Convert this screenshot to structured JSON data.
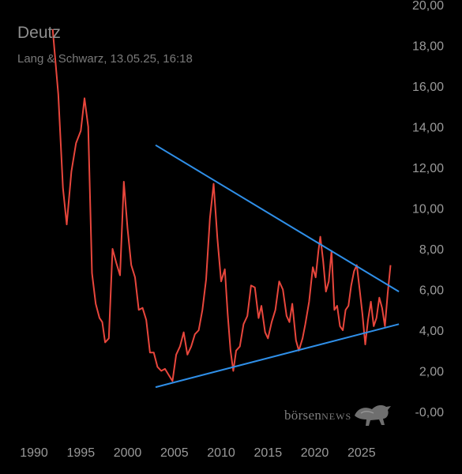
{
  "header": {
    "title": "Deutz",
    "subtitle": "Lang & Schwarz, 13.05.25, 16:18"
  },
  "watermark": {
    "text_lower": "börsen",
    "text_caps": "NEWS",
    "icon": "bull-icon"
  },
  "colors": {
    "price_line": "#e8463c",
    "trend_lines": "#2f8fe8",
    "text": "#9a9a9a",
    "background": "#000000"
  },
  "chart_data": {
    "type": "line",
    "x_tick_labels": [
      "1990",
      "1995",
      "2000",
      "2005",
      "2010",
      "2015",
      "2020",
      "2025"
    ],
    "y_tick_labels": [
      "-0,00",
      "2,00",
      "4,00",
      "6,00",
      "8,00",
      "10,00",
      "12,00",
      "14,00",
      "16,00",
      "18,00",
      "20,00"
    ],
    "xlim": [
      1987.5,
      2027.5
    ],
    "ylim": [
      -0.5,
      20.5
    ],
    "grid": false,
    "series": [
      {
        "role": "price",
        "points": [
          [
            1992.0,
            18.8
          ],
          [
            1992.6,
            15.6
          ],
          [
            1993.1,
            11.0
          ],
          [
            1993.5,
            9.2
          ],
          [
            1994.0,
            11.8
          ],
          [
            1994.5,
            13.2
          ],
          [
            1995.0,
            13.8
          ],
          [
            1995.4,
            15.4
          ],
          [
            1995.8,
            14.0
          ],
          [
            1996.2,
            6.8
          ],
          [
            1996.6,
            5.3
          ],
          [
            1997.0,
            4.6
          ],
          [
            1997.3,
            4.4
          ],
          [
            1997.6,
            3.4
          ],
          [
            1998.0,
            3.6
          ],
          [
            1998.4,
            8.0
          ],
          [
            1998.8,
            7.3
          ],
          [
            1999.2,
            6.7
          ],
          [
            1999.6,
            11.3
          ],
          [
            2000.0,
            9.0
          ],
          [
            2000.4,
            7.2
          ],
          [
            2000.8,
            6.6
          ],
          [
            2001.2,
            5.0
          ],
          [
            2001.6,
            5.1
          ],
          [
            2002.0,
            4.5
          ],
          [
            2002.4,
            2.9
          ],
          [
            2002.8,
            2.9
          ],
          [
            2003.2,
            2.2
          ],
          [
            2003.6,
            2.0
          ],
          [
            2004.0,
            2.1
          ],
          [
            2004.4,
            1.8
          ],
          [
            2004.8,
            1.5
          ],
          [
            2005.2,
            2.8
          ],
          [
            2005.6,
            3.2
          ],
          [
            2006.0,
            3.9
          ],
          [
            2006.4,
            2.8
          ],
          [
            2006.8,
            3.2
          ],
          [
            2007.2,
            3.8
          ],
          [
            2007.6,
            4.0
          ],
          [
            2008.0,
            5.0
          ],
          [
            2008.4,
            6.5
          ],
          [
            2008.8,
            9.5
          ],
          [
            2009.2,
            11.2
          ],
          [
            2009.6,
            8.5
          ],
          [
            2010.0,
            6.4
          ],
          [
            2010.4,
            7.0
          ],
          [
            2010.7,
            4.8
          ],
          [
            2011.0,
            3.0
          ],
          [
            2011.3,
            2.0
          ],
          [
            2011.6,
            3.0
          ],
          [
            2012.0,
            3.2
          ],
          [
            2012.4,
            4.3
          ],
          [
            2012.8,
            4.7
          ],
          [
            2013.2,
            6.2
          ],
          [
            2013.6,
            6.1
          ],
          [
            2014.0,
            4.6
          ],
          [
            2014.3,
            5.2
          ],
          [
            2014.7,
            3.9
          ],
          [
            2015.0,
            3.6
          ],
          [
            2015.4,
            4.4
          ],
          [
            2015.8,
            5.0
          ],
          [
            2016.2,
            6.4
          ],
          [
            2016.6,
            6.0
          ],
          [
            2017.0,
            4.7
          ],
          [
            2017.3,
            4.4
          ],
          [
            2017.6,
            5.3
          ],
          [
            2018.0,
            3.5
          ],
          [
            2018.3,
            3.0
          ],
          [
            2018.7,
            3.6
          ],
          [
            2019.0,
            4.3
          ],
          [
            2019.4,
            5.4
          ],
          [
            2019.8,
            7.1
          ],
          [
            2020.1,
            6.6
          ],
          [
            2020.4,
            7.9
          ],
          [
            2020.6,
            8.6
          ],
          [
            2020.9,
            7.4
          ],
          [
            2021.2,
            5.9
          ],
          [
            2021.5,
            6.4
          ],
          [
            2021.8,
            7.9
          ],
          [
            2022.1,
            5.0
          ],
          [
            2022.4,
            5.2
          ],
          [
            2022.7,
            4.2
          ],
          [
            2023.0,
            4.0
          ],
          [
            2023.3,
            5.0
          ],
          [
            2023.6,
            5.2
          ],
          [
            2023.9,
            6.2
          ],
          [
            2024.2,
            6.9
          ],
          [
            2024.5,
            7.2
          ],
          [
            2024.8,
            6.0
          ],
          [
            2025.1,
            4.8
          ],
          [
            2025.4,
            3.3
          ],
          [
            2025.7,
            4.5
          ],
          [
            2026.0,
            5.4
          ],
          [
            2026.3,
            4.2
          ],
          [
            2026.6,
            4.6
          ],
          [
            2026.9,
            5.6
          ],
          [
            2027.2,
            5.1
          ],
          [
            2027.5,
            4.2
          ],
          [
            2027.8,
            5.8
          ],
          [
            2028.1,
            7.2
          ]
        ]
      },
      {
        "role": "upper-trend",
        "points": [
          [
            2003.0,
            13.1
          ],
          [
            2029.0,
            5.9
          ]
        ]
      },
      {
        "role": "lower-trend",
        "points": [
          [
            2003.0,
            1.2
          ],
          [
            2029.0,
            4.3
          ]
        ]
      }
    ]
  }
}
